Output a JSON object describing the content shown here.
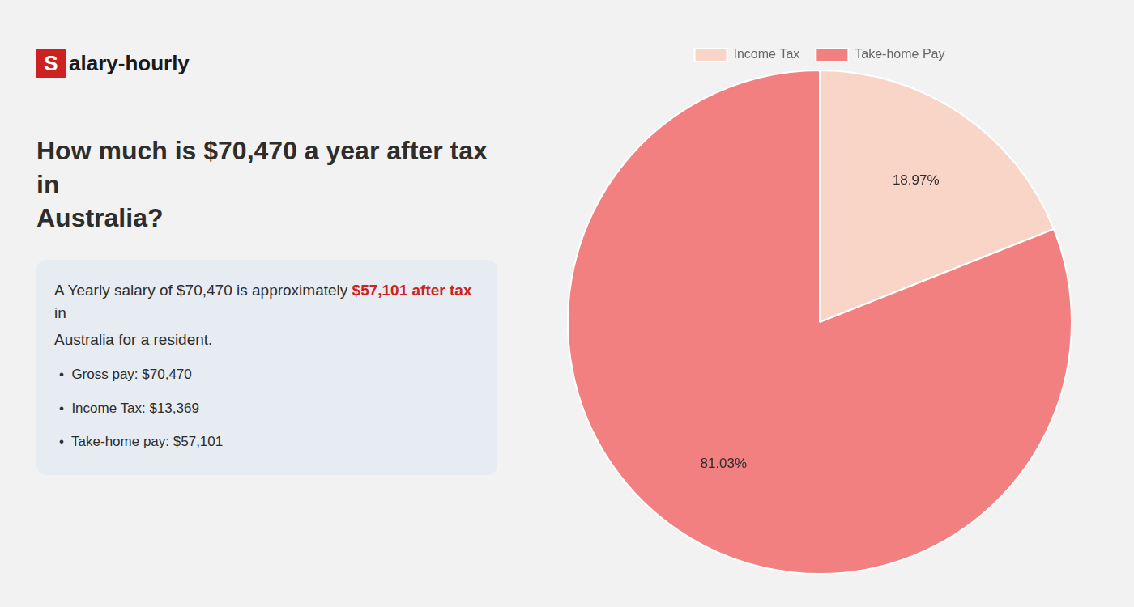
{
  "chart_data": {
    "type": "pie",
    "title": [
      "How much is $70,470 a year after tax in",
      "Australia?"
    ],
    "annotations": [
      [
        {
          "text": "S",
          "color": "#cc2222"
        },
        {
          "text": "alary-hourly"
        }
      ],
      [
        {
          "text": "A Yearly salary of $70,470 is approximately "
        },
        {
          "text": "$57,101 after tax",
          "color": "#cc2222"
        },
        {
          "text": " in"
        }
      ],
      "Australia for a resident.",
      "•  Gross pay: $70,470",
      "•  Income Tax: $13,369",
      "•  Take-home pay: $57,101"
    ],
    "categories": [
      "Income Tax",
      "Take-home Pay"
    ],
    "values": [
      18.97,
      81.03
    ],
    "value_labels": [
      "18.97%",
      "81.03%"
    ],
    "colors": [
      "#f9d5c8",
      "#f28080"
    ],
    "data_labels": true,
    "legend": "top"
  }
}
